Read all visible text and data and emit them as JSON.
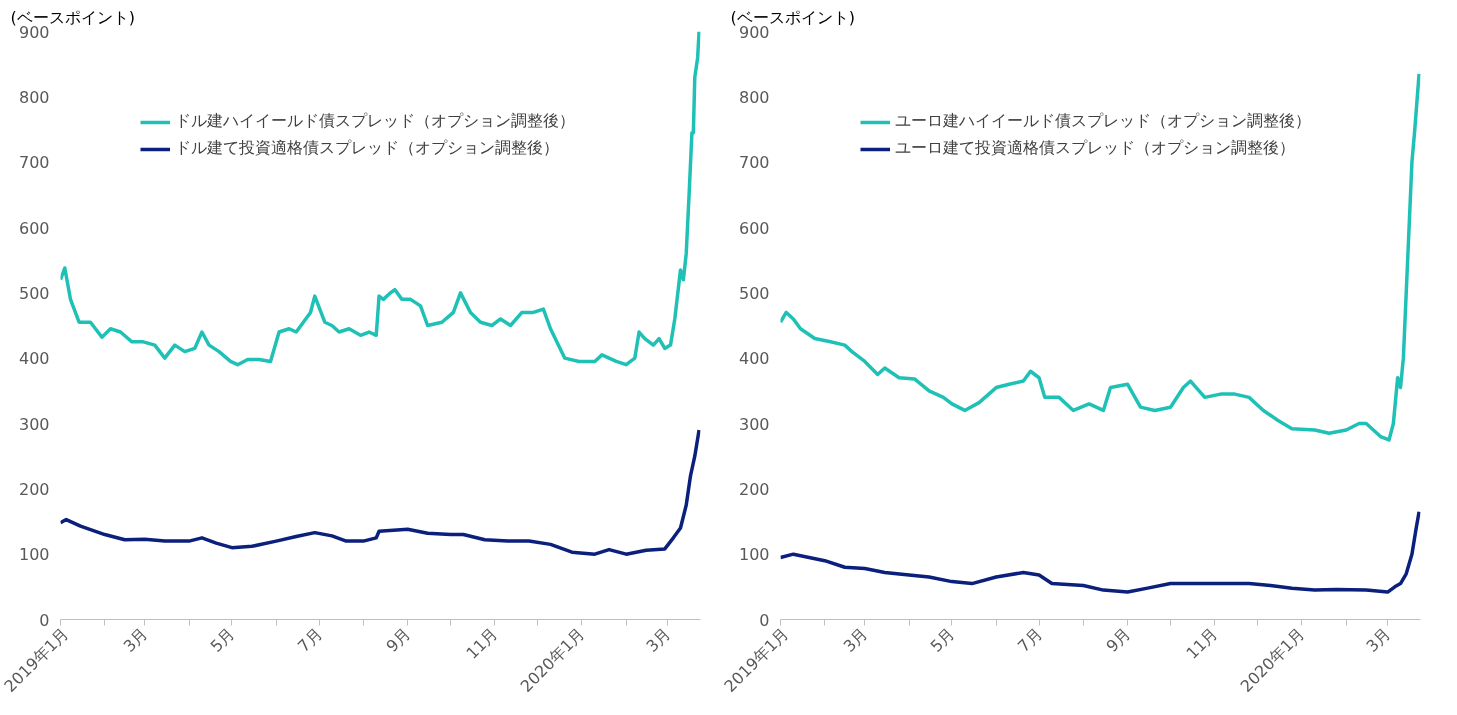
{
  "chart_data": [
    {
      "type": "line",
      "ylabel": "(ベースポイント)",
      "xlim": [
        "2019-01-01",
        "2020-03-24"
      ],
      "ylim": [
        0,
        900
      ],
      "yticks": [
        0,
        100,
        200,
        300,
        400,
        500,
        600,
        700,
        800,
        900
      ],
      "xticks": [
        {
          "value": "2019-01-01",
          "label": "2019年1月"
        },
        {
          "value": "2019-02-01",
          "label": null
        },
        {
          "value": "2019-03-01",
          "label": "3月"
        },
        {
          "value": "2019-04-01",
          "label": null
        },
        {
          "value": "2019-05-01",
          "label": "5月"
        },
        {
          "value": "2019-06-01",
          "label": null
        },
        {
          "value": "2019-07-01",
          "label": "7月"
        },
        {
          "value": "2019-08-01",
          "label": null
        },
        {
          "value": "2019-09-01",
          "label": "9月"
        },
        {
          "value": "2019-10-01",
          "label": null
        },
        {
          "value": "2019-11-01",
          "label": "11月"
        },
        {
          "value": "2019-12-01",
          "label": null
        },
        {
          "value": "2020-01-01",
          "label": "2020年1月"
        },
        {
          "value": "2020-02-01",
          "label": null
        },
        {
          "value": "2020-03-01",
          "label": "3月"
        }
      ],
      "grid": false,
      "legend": "top left",
      "line_style": "solid",
      "marker": "none",
      "series": [
        {
          "name": "ドル建ハイイールド債スプレッド（オプション調整後）",
          "color": "#1fc1b6",
          "x": [
            "2019-01-01",
            "2019-01-04",
            "2019-01-08",
            "2019-01-14",
            "2019-01-22",
            "2019-01-30",
            "2019-02-05",
            "2019-02-12",
            "2019-02-20",
            "2019-02-28",
            "2019-03-08",
            "2019-03-15",
            "2019-03-22",
            "2019-03-29",
            "2019-04-05",
            "2019-04-10",
            "2019-04-15",
            "2019-04-22",
            "2019-04-30",
            "2019-05-05",
            "2019-05-12",
            "2019-05-20",
            "2019-05-28",
            "2019-06-03",
            "2019-06-10",
            "2019-06-15",
            "2019-06-25",
            "2019-06-28",
            "2019-07-05",
            "2019-07-10",
            "2019-07-15",
            "2019-07-22",
            "2019-07-30",
            "2019-08-05",
            "2019-08-10",
            "2019-08-12",
            "2019-08-15",
            "2019-08-20",
            "2019-08-23",
            "2019-08-28",
            "2019-09-03",
            "2019-09-10",
            "2019-09-15",
            "2019-09-25",
            "2019-10-03",
            "2019-10-08",
            "2019-10-15",
            "2019-10-22",
            "2019-10-30",
            "2019-11-05",
            "2019-11-12",
            "2019-11-20",
            "2019-11-28",
            "2019-12-05",
            "2019-12-10",
            "2019-12-20",
            "2019-12-30",
            "2020-01-10",
            "2020-01-15",
            "2020-01-25",
            "2020-02-01",
            "2020-02-07",
            "2020-02-10",
            "2020-02-14",
            "2020-02-20",
            "2020-02-24",
            "2020-02-28",
            "2020-03-03",
            "2020-03-06",
            "2020-03-10",
            "2020-03-12",
            "2020-03-14",
            "2020-03-16",
            "2020-03-18",
            "2020-03-19",
            "2020-03-20",
            "2020-03-22",
            "2020-03-23"
          ],
          "values": [
            520,
            538,
            490,
            455,
            455,
            432,
            445,
            440,
            425,
            425,
            420,
            400,
            420,
            410,
            415,
            440,
            420,
            410,
            395,
            390,
            398,
            398,
            395,
            440,
            445,
            440,
            470,
            495,
            455,
            450,
            440,
            445,
            435,
            440,
            435,
            495,
            490,
            500,
            505,
            490,
            490,
            480,
            450,
            455,
            470,
            500,
            470,
            455,
            450,
            460,
            450,
            470,
            470,
            475,
            445,
            400,
            395,
            395,
            405,
            395,
            390,
            400,
            440,
            430,
            420,
            430,
            415,
            420,
            460,
            535,
            520,
            560,
            650,
            745,
            745,
            830,
            860,
            900
          ]
        },
        {
          "name": "ドル建て投資適格債スプレッド（オプション調整後）",
          "color": "#0b1f7c",
          "x": [
            "2019-01-01",
            "2019-01-05",
            "2019-01-15",
            "2019-02-01",
            "2019-02-15",
            "2019-03-01",
            "2019-03-15",
            "2019-04-01",
            "2019-04-10",
            "2019-04-20",
            "2019-05-01",
            "2019-05-15",
            "2019-06-01",
            "2019-06-15",
            "2019-06-28",
            "2019-07-10",
            "2019-07-20",
            "2019-08-01",
            "2019-08-10",
            "2019-08-12",
            "2019-09-01",
            "2019-09-15",
            "2019-10-01",
            "2019-10-10",
            "2019-10-25",
            "2019-11-10",
            "2019-11-25",
            "2019-12-10",
            "2019-12-25",
            "2020-01-10",
            "2020-01-20",
            "2020-02-01",
            "2020-02-15",
            "2020-02-28",
            "2020-03-05",
            "2020-03-10",
            "2020-03-14",
            "2020-03-17",
            "2020-03-20",
            "2020-03-23"
          ],
          "values": [
            148,
            153,
            143,
            130,
            122,
            123,
            120,
            120,
            125,
            117,
            110,
            112,
            120,
            127,
            133,
            128,
            120,
            120,
            125,
            135,
            138,
            132,
            130,
            130,
            122,
            120,
            120,
            115,
            103,
            100,
            107,
            100,
            106,
            108,
            125,
            140,
            175,
            220,
            250,
            290
          ]
        }
      ]
    },
    {
      "type": "line",
      "ylabel": "(ベースポイント)",
      "xlim": [
        "2019-01-01",
        "2020-03-24"
      ],
      "ylim": [
        0,
        900
      ],
      "yticks": [
        0,
        100,
        200,
        300,
        400,
        500,
        600,
        700,
        800,
        900
      ],
      "xticks": [
        {
          "value": "2019-01-01",
          "label": "2019年1月"
        },
        {
          "value": "2019-02-01",
          "label": null
        },
        {
          "value": "2019-03-01",
          "label": "3月"
        },
        {
          "value": "2019-04-01",
          "label": null
        },
        {
          "value": "2019-05-01",
          "label": "5月"
        },
        {
          "value": "2019-06-01",
          "label": null
        },
        {
          "value": "2019-07-01",
          "label": "7月"
        },
        {
          "value": "2019-08-01",
          "label": null
        },
        {
          "value": "2019-09-01",
          "label": "9月"
        },
        {
          "value": "2019-10-01",
          "label": null
        },
        {
          "value": "2019-11-01",
          "label": "11月"
        },
        {
          "value": "2019-12-01",
          "label": null
        },
        {
          "value": "2020-01-01",
          "label": "2020年1月"
        },
        {
          "value": "2020-02-01",
          "label": null
        },
        {
          "value": "2020-03-01",
          "label": "3月"
        }
      ],
      "grid": false,
      "legend": "top left",
      "line_style": "solid",
      "marker": "none",
      "series": [
        {
          "name": "ユーロ建ハイイールド債スプレッド（オプション調整後）",
          "color": "#1fc1b6",
          "x": [
            "2019-01-01",
            "2019-01-05",
            "2019-01-10",
            "2019-01-15",
            "2019-01-25",
            "2019-02-05",
            "2019-02-15",
            "2019-02-20",
            "2019-03-01",
            "2019-03-10",
            "2019-03-15",
            "2019-03-25",
            "2019-04-05",
            "2019-04-15",
            "2019-04-25",
            "2019-05-01",
            "2019-05-10",
            "2019-05-20",
            "2019-06-01",
            "2019-06-10",
            "2019-06-20",
            "2019-06-25",
            "2019-07-01",
            "2019-07-05",
            "2019-07-15",
            "2019-07-25",
            "2019-08-05",
            "2019-08-15",
            "2019-08-20",
            "2019-09-01",
            "2019-09-10",
            "2019-09-20",
            "2019-10-01",
            "2019-10-10",
            "2019-10-15",
            "2019-10-25",
            "2019-11-05",
            "2019-11-15",
            "2019-11-25",
            "2019-12-05",
            "2019-12-15",
            "2019-12-25",
            "2020-01-10",
            "2020-01-20",
            "2020-02-01",
            "2020-02-10",
            "2020-02-15",
            "2020-02-25",
            "2020-03-02",
            "2020-03-05",
            "2020-03-08",
            "2020-03-10",
            "2020-03-12",
            "2020-03-14",
            "2020-03-16",
            "2020-03-18",
            "2020-03-20",
            "2020-03-23"
          ],
          "values": [
            455,
            470,
            460,
            445,
            430,
            425,
            420,
            410,
            395,
            375,
            385,
            370,
            368,
            350,
            340,
            330,
            320,
            332,
            355,
            360,
            365,
            380,
            370,
            340,
            340,
            320,
            330,
            320,
            355,
            360,
            325,
            320,
            325,
            355,
            365,
            340,
            345,
            345,
            340,
            320,
            305,
            292,
            290,
            285,
            290,
            300,
            300,
            280,
            275,
            300,
            370,
            355,
            400,
            500,
            600,
            700,
            750,
            835
          ]
        },
        {
          "name": "ユーロ建て投資適格債スプレッド（オプション調整後）",
          "color": "#0b1f7c",
          "x": [
            "2019-01-01",
            "2019-01-10",
            "2019-02-01",
            "2019-02-15",
            "2019-03-01",
            "2019-03-15",
            "2019-04-01",
            "2019-04-15",
            "2019-05-01",
            "2019-05-15",
            "2019-06-01",
            "2019-06-20",
            "2019-07-01",
            "2019-07-10",
            "2019-08-01",
            "2019-08-15",
            "2019-09-01",
            "2019-09-15",
            "2019-10-01",
            "2019-10-20",
            "2019-11-10",
            "2019-11-25",
            "2019-12-10",
            "2019-12-25",
            "2020-01-10",
            "2020-01-25",
            "2020-02-15",
            "2020-03-01",
            "2020-03-06",
            "2020-03-10",
            "2020-03-14",
            "2020-03-18",
            "2020-03-21",
            "2020-03-23"
          ],
          "values": [
            95,
            100,
            90,
            80,
            78,
            72,
            68,
            65,
            58,
            55,
            65,
            72,
            68,
            55,
            52,
            45,
            42,
            48,
            55,
            55,
            55,
            55,
            52,
            48,
            45,
            46,
            45,
            42,
            50,
            55,
            70,
            100,
            140,
            165
          ]
        }
      ]
    }
  ]
}
